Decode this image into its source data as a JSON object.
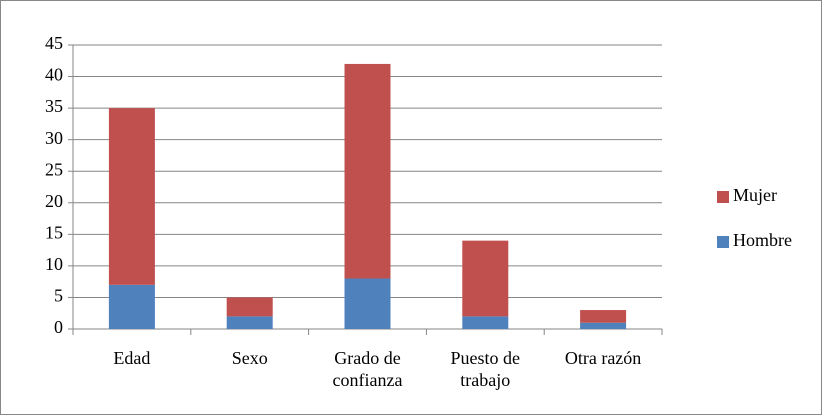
{
  "chart_data": {
    "type": "stacked_bar",
    "categories": [
      "Edad",
      "Sexo",
      "Grado de confianza",
      "Puesto de trabajo",
      "Otra razón"
    ],
    "series": [
      {
        "name": "Hombre",
        "color": "#4f81bd",
        "values": [
          7,
          2,
          8,
          2,
          1
        ]
      },
      {
        "name": "Mujer",
        "color": "#c0504d",
        "values": [
          28,
          3,
          34,
          12,
          2
        ]
      }
    ],
    "ylim": [
      0,
      45
    ],
    "yticks": [
      0,
      5,
      10,
      15,
      20,
      25,
      30,
      35,
      40,
      45
    ],
    "grid": true,
    "legend": "right"
  }
}
